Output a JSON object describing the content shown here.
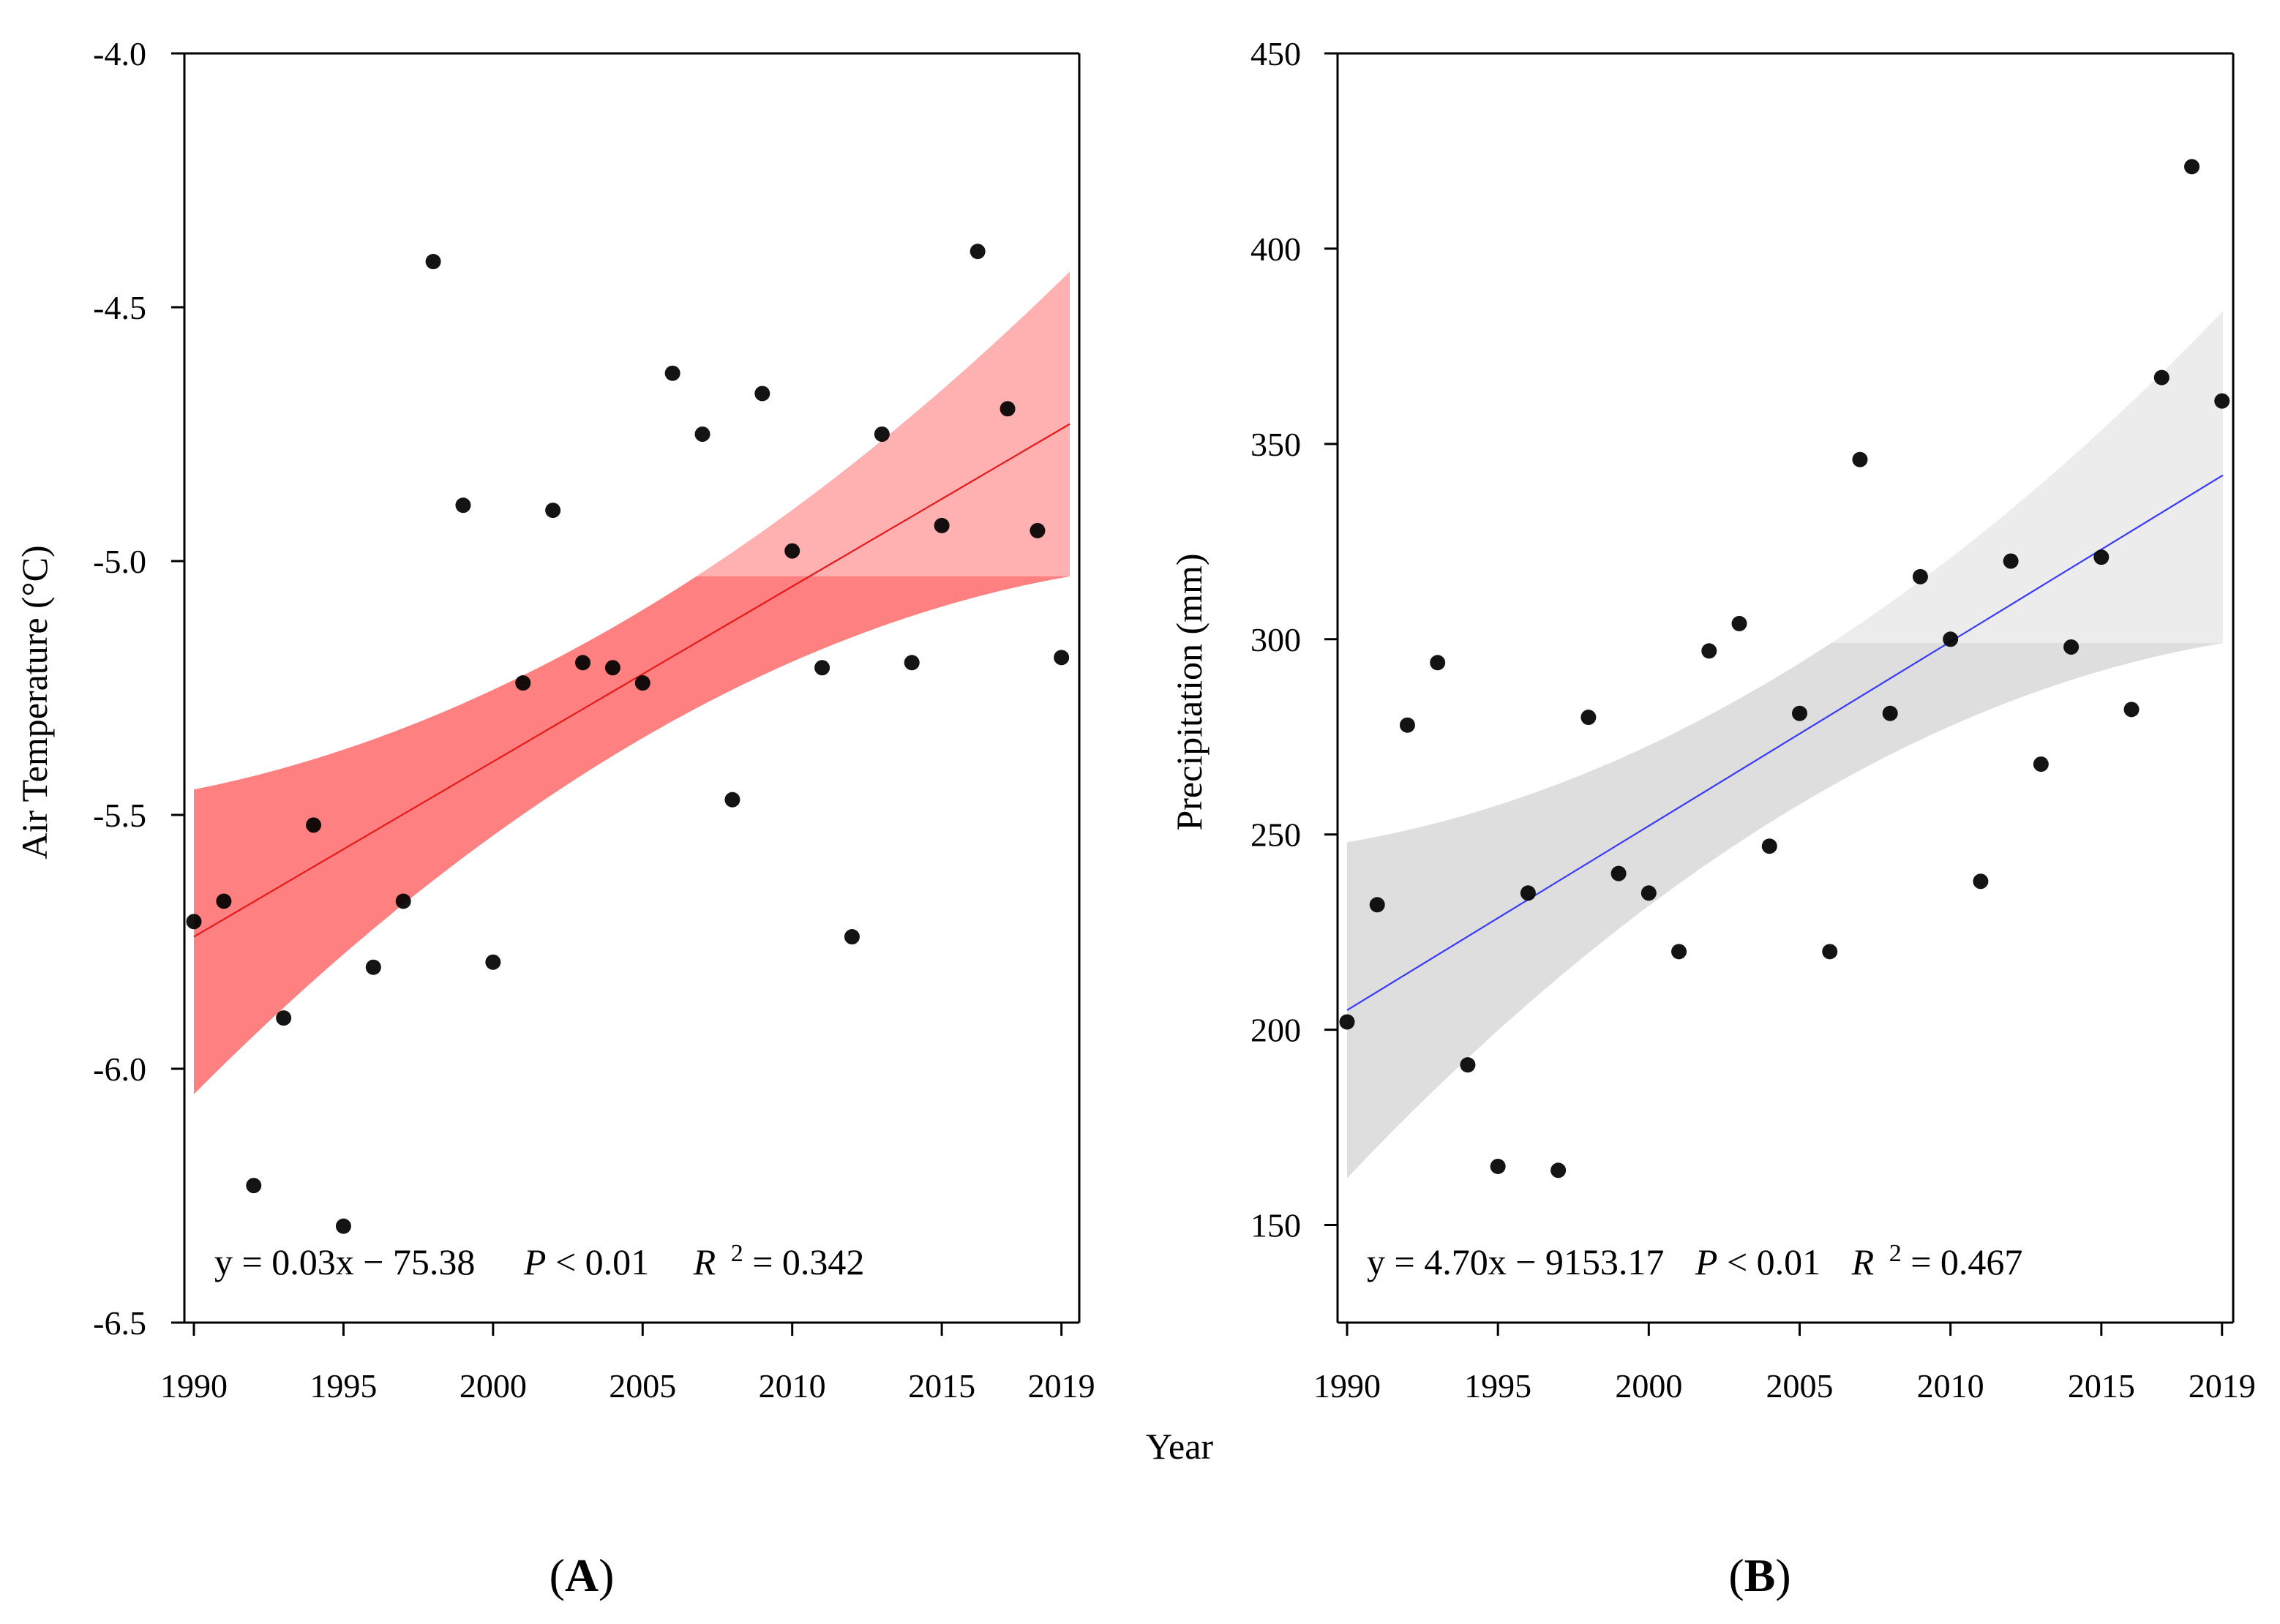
{
  "figure": {
    "shared_xlabel": "Year",
    "panel_labels": [
      "A",
      "B"
    ]
  },
  "chart_data": [
    {
      "type": "scatter",
      "panel": "A",
      "title": "",
      "xlabel": "Year",
      "ylabel": "Air Temperature (°C)",
      "xlim": [
        1990,
        2019
      ],
      "ylim": [
        -6.5,
        -4.0
      ],
      "xticks": [
        1990,
        1995,
        2000,
        2005,
        2010,
        2015,
        2019
      ],
      "yticks": [
        -6.5,
        -6.0,
        -5.5,
        -5.0,
        -4.5,
        -4.0
      ],
      "ytick_labels": [
        "-6.5",
        "-6.0",
        "-5.5",
        "-5.0",
        "-4.5",
        "-4.0"
      ],
      "x": [
        1990,
        1991,
        1992,
        1993,
        1994,
        1995,
        1996,
        1997,
        1998,
        1999,
        2000,
        2001,
        2002,
        2003,
        2004,
        2005,
        2006,
        2007,
        2008,
        2009,
        2010,
        2011,
        2012,
        2013,
        2014,
        2015,
        2016.2,
        2017.2,
        2018.2,
        2019
      ],
      "y": [
        -5.71,
        -5.67,
        -6.23,
        -5.9,
        -5.52,
        -6.31,
        -5.8,
        -5.67,
        -4.41,
        -4.89,
        -5.79,
        -5.24,
        -4.9,
        -5.2,
        -5.21,
        -5.24,
        -4.63,
        -4.75,
        -5.47,
        -4.67,
        -4.98,
        -5.21,
        -5.74,
        -4.75,
        -5.2,
        -4.93,
        -4.39,
        -4.7,
        -4.94,
        -5.19
      ],
      "fit": {
        "slope": 0.03,
        "intercept": -75.38,
        "y_start": -5.74,
        "y_end": -4.73,
        "color": "#e8191a"
      },
      "confidence_band": {
        "color": "#ff8080",
        "upper_color": "#ffb0b0",
        "split_at": -5.03,
        "lower_start": -6.05,
        "lower_end": -5.03,
        "upper_start": -5.45,
        "upper_end": -4.43
      },
      "equation": {
        "lhs": "y = 0.03x − 75.38",
        "p_sym": "P",
        "p_rest": " < 0.01",
        "r_sym": "R",
        "r_exp": "2",
        "r_rest": " = 0.342"
      }
    },
    {
      "type": "scatter",
      "panel": "B",
      "title": "",
      "xlabel": "Year",
      "ylabel": "Precipitation (mm)",
      "xlim": [
        1990,
        2019
      ],
      "ylim": [
        125,
        450
      ],
      "xticks": [
        1990,
        1995,
        2000,
        2005,
        2010,
        2015,
        2019
      ],
      "yticks": [
        150,
        200,
        250,
        300,
        350,
        400,
        450
      ],
      "ytick_labels": [
        "150",
        "200",
        "250",
        "300",
        "350",
        "400",
        "450"
      ],
      "x": [
        1990,
        1991,
        1992,
        1993,
        1994,
        1995,
        1996,
        1997,
        1998,
        1999,
        2000,
        2001,
        2002,
        2003,
        2004,
        2005,
        2006,
        2007,
        2008,
        2009,
        2010,
        2011,
        2012,
        2013,
        2014,
        2015,
        2016,
        2017,
        2018,
        2019
      ],
      "y": [
        202,
        232,
        278,
        294,
        191,
        165,
        235,
        164,
        280,
        240,
        235,
        220,
        297,
        304,
        247,
        281,
        220,
        346,
        281,
        316,
        300,
        238,
        320,
        268,
        298,
        321,
        282,
        367,
        421,
        361
      ],
      "fit": {
        "slope": 4.7,
        "intercept": -9153.17,
        "y_start": 205,
        "y_end": 342,
        "color": "#3a3aff"
      },
      "confidence_band": {
        "color": "#dedede",
        "upper_color": "#ececec",
        "split_at": 299,
        "lower_start": 162,
        "lower_end": 299,
        "upper_start": 248,
        "upper_end": 384
      },
      "equation": {
        "lhs": "y = 4.70x − 9153.17",
        "p_sym": "P",
        "p_rest": " < 0.01",
        "r_sym": "R",
        "r_exp": "2",
        "r_rest": " = 0.467"
      }
    }
  ]
}
